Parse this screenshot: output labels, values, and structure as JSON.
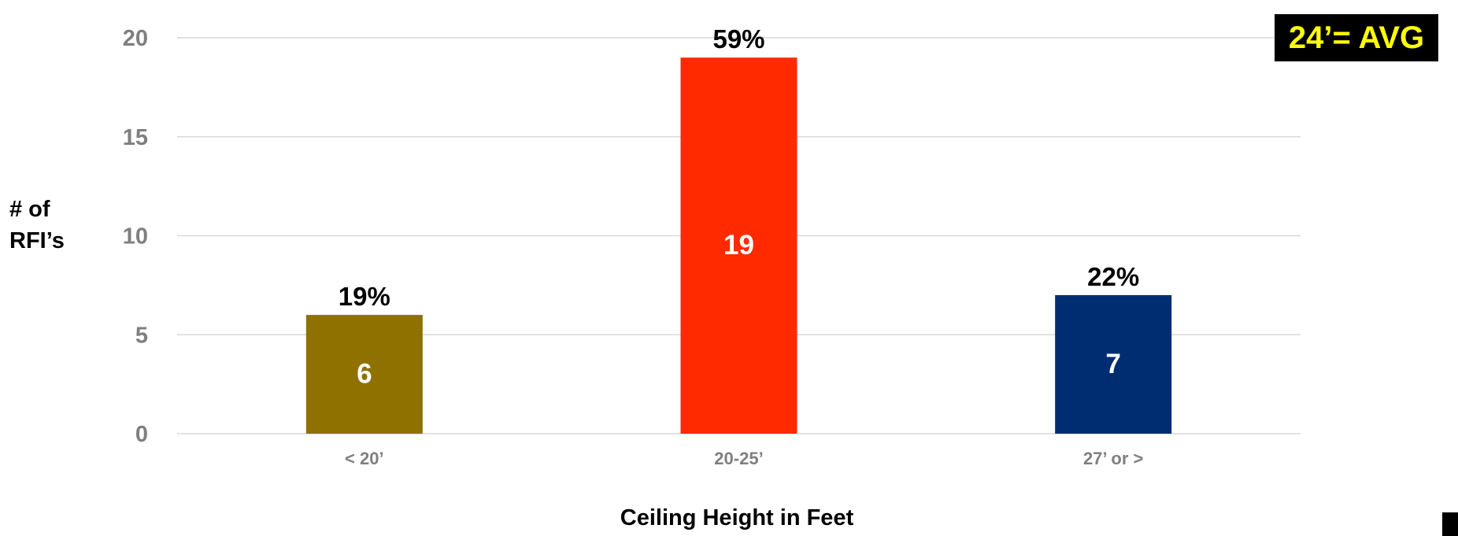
{
  "badge": {
    "text": "24’= AVG",
    "background": "#000000",
    "color": "#ffff00"
  },
  "chart_data": {
    "type": "bar",
    "title": "",
    "xlabel": "Ceiling Height in Feet",
    "ylabel_lines": [
      "# of",
      "RFI’s"
    ],
    "categories": [
      "< 20’",
      "20-25’",
      "27’ or >"
    ],
    "values": [
      6,
      19,
      7
    ],
    "percent_labels": [
      "19%",
      "59%",
      "22%"
    ],
    "bar_colors": [
      "#8f7100",
      "#ff2a00",
      "#002d72"
    ],
    "ylim": [
      0,
      20
    ],
    "yticks": [
      0,
      5,
      10,
      15,
      20
    ],
    "grid": true,
    "legend": "none"
  }
}
